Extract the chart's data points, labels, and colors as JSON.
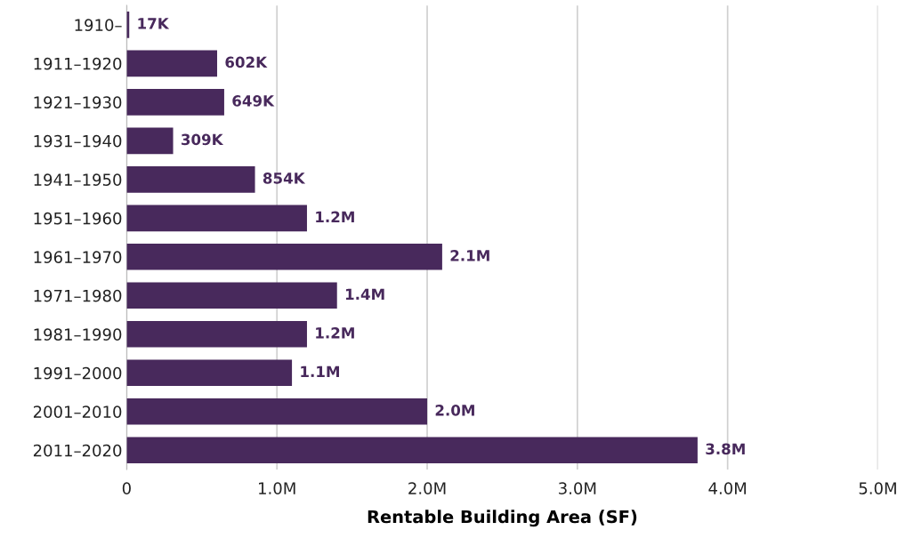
{
  "chart_data": {
    "type": "bar",
    "orientation": "horizontal",
    "xlabel": "Rentable Building Area (SF)",
    "categories": [
      "1910–",
      "1911–1920",
      "1921–1930",
      "1931–1940",
      "1941–1950",
      "1951–1960",
      "1961–1970",
      "1971–1980",
      "1981–1990",
      "1991–2000",
      "2001–2010",
      "2011–2020"
    ],
    "values": [
      17000,
      602000,
      649000,
      309000,
      854000,
      1200000,
      2100000,
      1400000,
      1200000,
      1100000,
      2000000,
      3800000
    ],
    "value_labels": [
      "17K",
      "602K",
      "649K",
      "309K",
      "854K",
      "1.2M",
      "2.1M",
      "1.4M",
      "1.2M",
      "1.1M",
      "2.0M",
      "3.8M"
    ],
    "color": "#48295c",
    "xlim": [
      0,
      5000000
    ],
    "xticks": [
      0,
      {
        "value": 1000000,
        "label": "1.0M"
      },
      {
        "value": 2000000,
        "label": "2.0M"
      },
      {
        "value": 3000000,
        "label": "3.0M"
      },
      {
        "value": 4000000,
        "label": "4.0M"
      },
      {
        "value": 5000000,
        "label": "5.0M"
      }
    ],
    "grid": "x",
    "legend": false
  }
}
